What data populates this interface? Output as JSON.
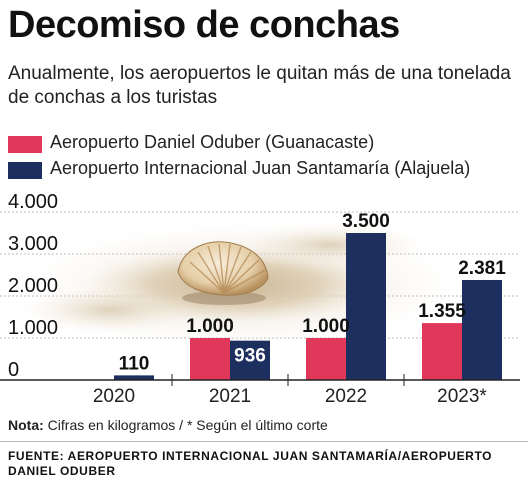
{
  "title": "Decomiso de conchas",
  "subtitle": "Anualmente, los aeropuertos le quitan más de una tonelada de conchas a los turistas",
  "note": {
    "label": "Nota:",
    "text": " Cifras en kilogramos / * Según el último corte"
  },
  "source": "FUENTE: AEROPUERTO INTERNACIONAL JUAN SANTAMARÍA/AEROPUERTO DANIEL ODUBER",
  "colors": {
    "series1": "#e0375b",
    "series2": "#1c2f5e",
    "axis": "#222222",
    "grid": "#bbbbbb"
  },
  "chart_data": {
    "type": "bar",
    "categories": [
      "2020",
      "2021",
      "2022",
      "2023*"
    ],
    "series": [
      {
        "name": "Aeropuerto Daniel Oduber (Guanacaste)",
        "values": [
          null,
          1000,
          1000,
          1355
        ],
        "labels": [
          "",
          "1.000",
          "1.000",
          "1.355"
        ]
      },
      {
        "name": "Aeropuerto Internacional Juan Santamaría (Alajuela)",
        "values": [
          110,
          936,
          3500,
          2381
        ],
        "labels": [
          "110",
          "936",
          "3.500",
          "2.381"
        ]
      }
    ],
    "yticks": [
      0,
      1000,
      2000,
      3000,
      4000
    ],
    "ytick_labels": [
      "0",
      "1.000",
      "2.000",
      "3.000",
      "4.000"
    ],
    "ylim": [
      0,
      4000
    ],
    "grid": true,
    "legend_position": "top-left",
    "illustration": "seashell on sand"
  }
}
